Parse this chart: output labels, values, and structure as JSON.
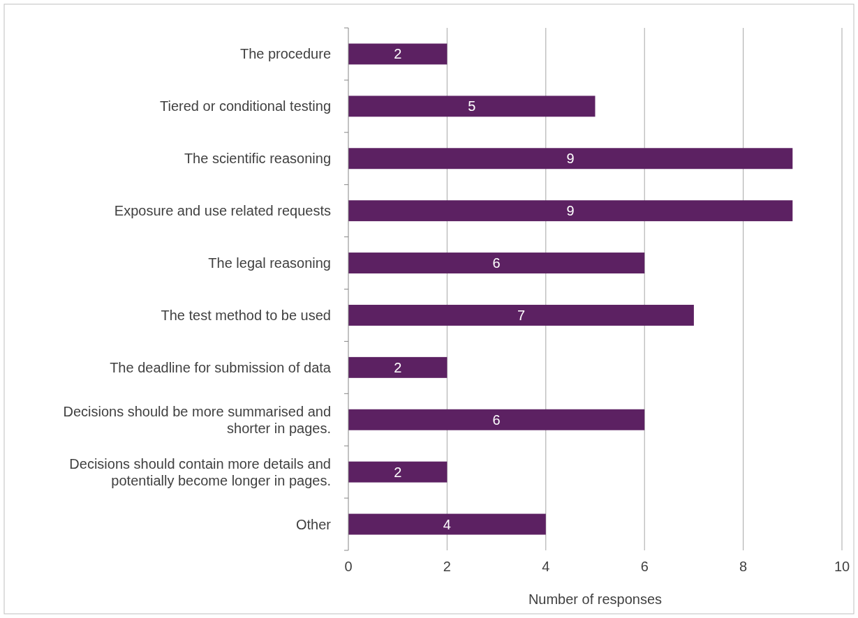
{
  "chart_data": {
    "type": "bar",
    "orientation": "horizontal",
    "xlabel": "Number of responses",
    "categories": [
      "The procedure",
      "Tiered or conditional testing",
      "The scientific reasoning",
      "Exposure and use related requests",
      "The legal reasoning",
      "The test method to be used",
      "The deadline for submission of data",
      "Decisions should be more summarised and shorter in pages.",
      "Decisions should contain more details and potentially become longer in pages.",
      "Other"
    ],
    "values": [
      2,
      5,
      9,
      9,
      6,
      7,
      2,
      6,
      2,
      4
    ],
    "color": "#5c2162",
    "xlim": [
      0,
      10
    ],
    "xticks": [
      0,
      2,
      4,
      6,
      8,
      10
    ],
    "grid": "x",
    "data_labels": true
  }
}
